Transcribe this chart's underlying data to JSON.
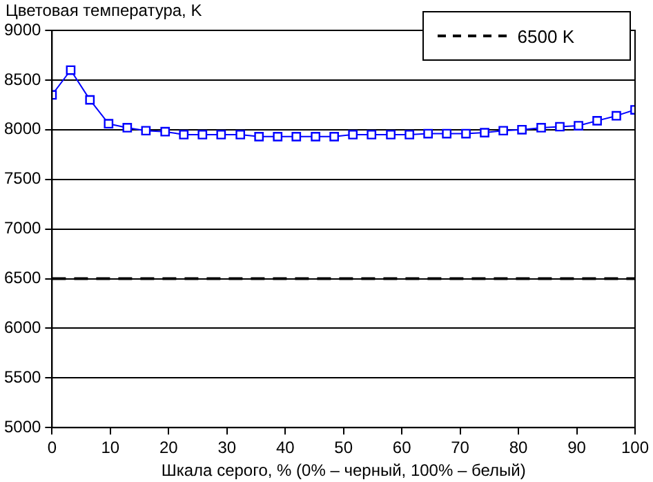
{
  "chart_data": {
    "type": "line",
    "ylabel": "Цветовая температура, K",
    "xlabel": "Шкала серого, % (0% – черный, 100% – белый)",
    "x": [
      0,
      3.2,
      6.5,
      9.7,
      12.9,
      16.1,
      19.4,
      22.6,
      25.8,
      29.0,
      32.3,
      35.5,
      38.7,
      41.9,
      45.2,
      48.4,
      51.6,
      54.8,
      58.1,
      61.3,
      64.5,
      67.7,
      71.0,
      74.2,
      77.4,
      80.6,
      83.9,
      87.1,
      90.3,
      93.5,
      96.8,
      100
    ],
    "series": [
      {
        "color": "#0000ff",
        "values": [
          8350,
          8600,
          8300,
          8060,
          8020,
          7990,
          7980,
          7950,
          7950,
          7950,
          7950,
          7930,
          7930,
          7930,
          7930,
          7930,
          7950,
          7950,
          7950,
          7950,
          7960,
          7960,
          7960,
          7970,
          7990,
          8000,
          8020,
          8030,
          8040,
          8090,
          8140,
          8200
        ]
      }
    ],
    "ref_lines": [
      {
        "axis": "y",
        "value": 6500,
        "label": "6500 K",
        "color": "#000000",
        "line_style": "dashed"
      }
    ],
    "xlim": [
      0,
      100
    ],
    "xticks": [
      0,
      10,
      20,
      30,
      40,
      50,
      60,
      70,
      80,
      90,
      100
    ],
    "ylim": [
      5000,
      9000
    ],
    "yticks": [
      5000,
      5500,
      6000,
      6500,
      7000,
      7500,
      8000,
      8500,
      9000
    ],
    "grid": "y",
    "legend": "top right",
    "marker": "square",
    "line_style": "solid"
  }
}
